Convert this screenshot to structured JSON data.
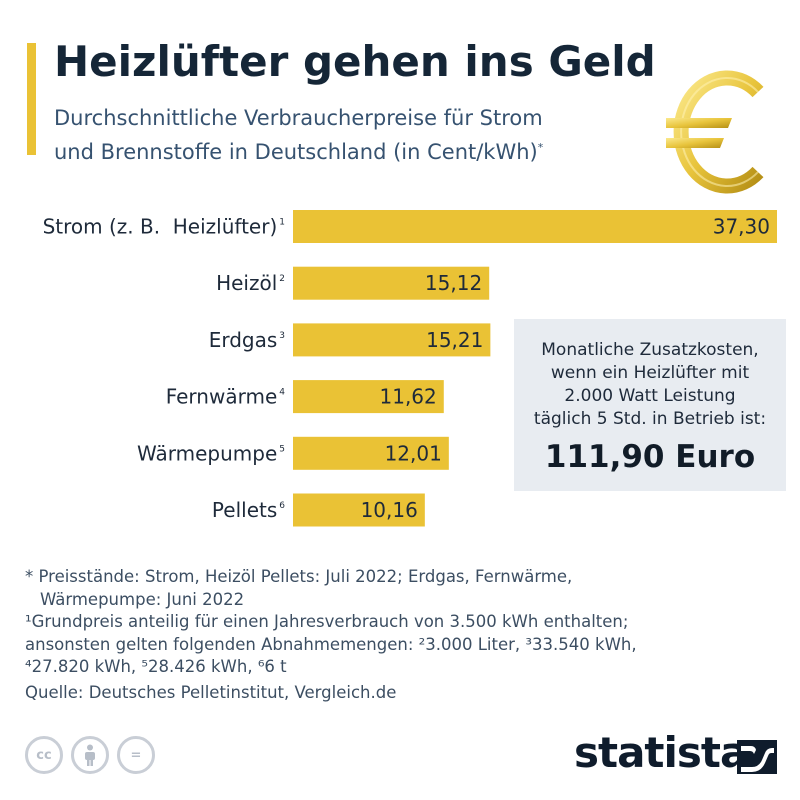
{
  "header": {
    "title": "Heizlüfter gehen ins Geld",
    "subtitle_line1": "Durchschnittliche Verbraucherpreise für Strom",
    "subtitle_line2": "und Brennstoffe in Deutschland (in Cent/kWh)",
    "subtitle_mark": "*"
  },
  "colors": {
    "accent": "#eac235",
    "bar": "#eac235",
    "text_dark": "#152637",
    "subtitle": "#365270",
    "info_bg": "#e8ecf1"
  },
  "chart_data": {
    "type": "bar",
    "orientation": "horizontal",
    "title": "Durchschnittliche Verbraucherpreise für Strom und Brennstoffe in Deutschland (in Cent/kWh)",
    "unit": "Cent/kWh",
    "categories": [
      "Strom (z. B.  Heizlüfter)",
      "Heizöl",
      "Erdgas",
      "Fernwärme",
      "Wärmepumpe",
      "Pellets"
    ],
    "footnote_marks": [
      "1",
      "2",
      "3",
      "4",
      "5",
      "6"
    ],
    "values": [
      37.3,
      15.12,
      15.21,
      11.62,
      12.01,
      10.16
    ],
    "value_labels": [
      "37,30",
      "15,12",
      "15,21",
      "11,62",
      "12,01",
      "10,16"
    ],
    "xlim": [
      0,
      37.3
    ],
    "grid": false,
    "legend": "none"
  },
  "info_box": {
    "line1": "Monatliche Zusatzkosten,",
    "line2": "wenn ein Heizlüfter mit",
    "line3": "2.000 Watt Leistung",
    "line4": "täglich 5 Std. in Betrieb ist:",
    "value": "111,90 Euro"
  },
  "footnotes": {
    "asterisk_line1": "* Preisstände: Strom, Heizöl Pellets: Juli 2022; Erdgas, Fernwärme,",
    "asterisk_line2": "Wärmepumpe: Juni 2022",
    "note1_line1": "¹Grundpreis anteilig für einen Jahresverbrauch von 3.500 kWh enthalten;",
    "note1_line2": "ansonsten gelten folgenden Abnahmemengen: ²3.000 Liter, ³33.540 kWh,",
    "note1_line3": "⁴27.820 kWh, ⁵28.426 kWh, ⁶6 t",
    "source": "Quelle: Deutsches Pelletinstitut, Vergleich.de"
  },
  "license_icons": {
    "cc": "cc",
    "eq": "="
  },
  "brand": {
    "name": "statista"
  }
}
